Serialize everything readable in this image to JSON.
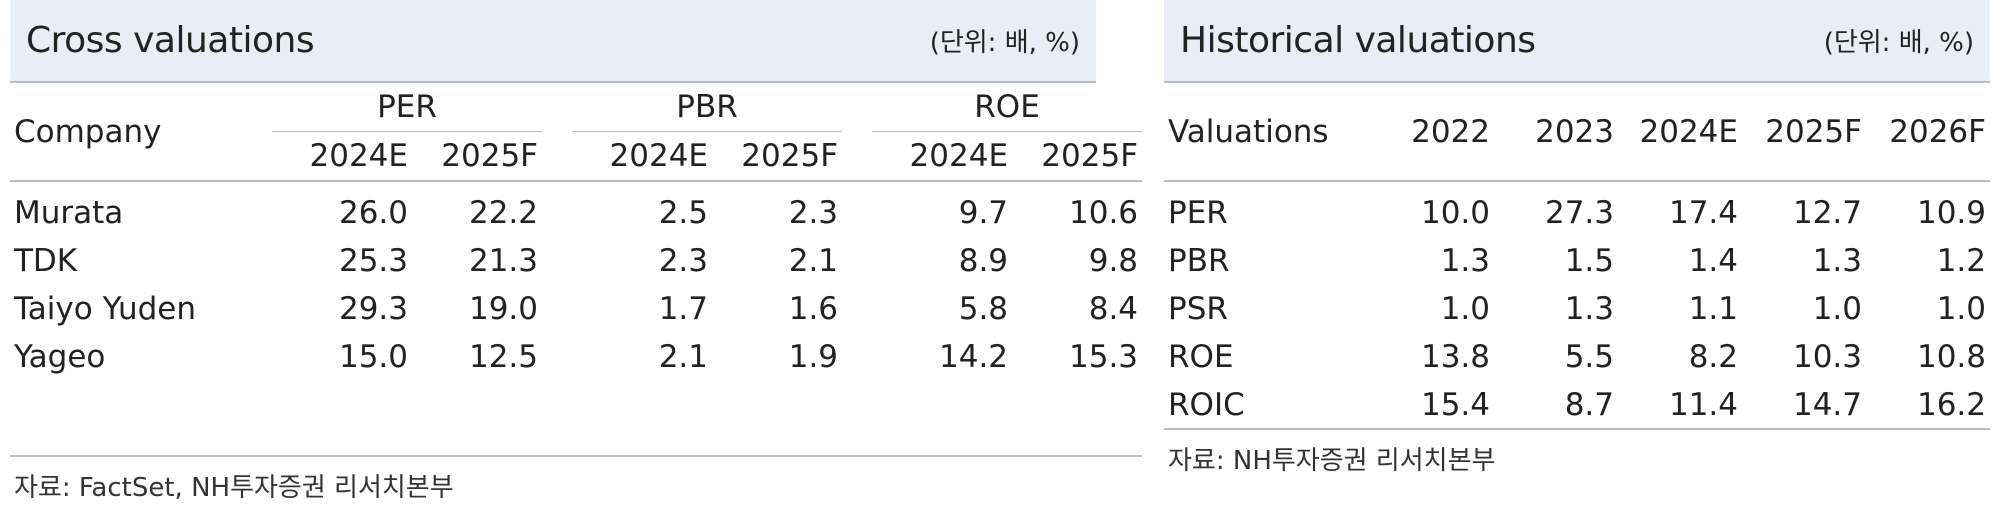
{
  "cross": {
    "title": "Cross valuations",
    "unit": "(단위: 배, %)",
    "company_header": "Company",
    "groups": [
      "PER",
      "PBR",
      "ROE"
    ],
    "years": [
      "2024E",
      "2025F",
      "2024E",
      "2025F",
      "2024E",
      "2025F"
    ],
    "rows": [
      {
        "company": "Murata",
        "values": [
          "26.0",
          "22.2",
          "2.5",
          "2.3",
          "9.7",
          "10.6"
        ]
      },
      {
        "company": "TDK",
        "values": [
          "25.3",
          "21.3",
          "2.3",
          "2.1",
          "8.9",
          "9.8"
        ]
      },
      {
        "company": "Taiyo Yuden",
        "values": [
          "29.3",
          "19.0",
          "1.7",
          "1.6",
          "5.8",
          "8.4"
        ]
      },
      {
        "company": "Yageo",
        "values": [
          "15.0",
          "12.5",
          "2.1",
          "1.9",
          "14.2",
          "15.3"
        ]
      }
    ],
    "source": "자료: FactSet, NH투자증권 리서치본부"
  },
  "historical": {
    "title": "Historical valuations",
    "unit": "(단위: 배, %)",
    "row_header": "Valuations",
    "years": [
      "2022",
      "2023",
      "2024E",
      "2025F",
      "2026F"
    ],
    "rows": [
      {
        "metric": "PER",
        "values": [
          "10.0",
          "27.3",
          "17.4",
          "12.7",
          "10.9"
        ]
      },
      {
        "metric": "PBR",
        "values": [
          "1.3",
          "1.5",
          "1.4",
          "1.3",
          "1.2"
        ]
      },
      {
        "metric": "PSR",
        "values": [
          "1.0",
          "1.3",
          "1.1",
          "1.0",
          "1.0"
        ]
      },
      {
        "metric": "ROE",
        "values": [
          "13.8",
          "5.5",
          "8.2",
          "10.3",
          "10.8"
        ]
      },
      {
        "metric": "ROIC",
        "values": [
          "15.4",
          "8.7",
          "11.4",
          "14.7",
          "16.2"
        ]
      }
    ],
    "source": "자료: NH투자증권 리서치본부"
  }
}
